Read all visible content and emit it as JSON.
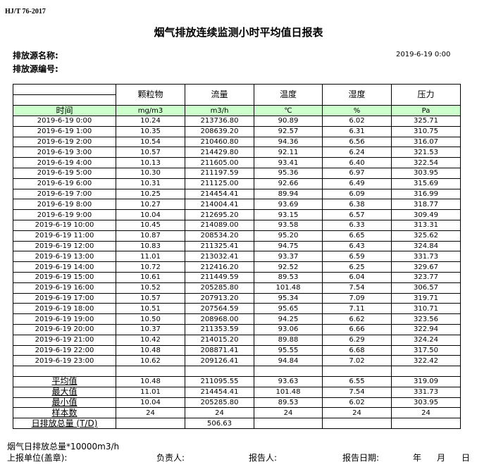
{
  "standard": "HJ/T  76-2017",
  "title": "烟气排放连续监测小时平均值日报表",
  "source_name_label": "排放源名称:",
  "source_no_label": "排放源编号:",
  "report_datetime": "2019-6-19 0:00",
  "columns": [
    {
      "name": "颗粒物",
      "unit": "mg/m3"
    },
    {
      "name": "流量",
      "unit": "m3/h"
    },
    {
      "name": "温度",
      "unit": "℃"
    },
    {
      "name": "湿度",
      "unit": "%"
    },
    {
      "name": "压力",
      "unit": "Pa"
    }
  ],
  "time_header": "时间",
  "rows": [
    [
      "2019-6-19 0:00",
      "10.24",
      "213736.80",
      "90.89",
      "6.02",
      "325.71"
    ],
    [
      "2019-6-19 1:00",
      "10.35",
      "208639.20",
      "92.57",
      "6.31",
      "310.75"
    ],
    [
      "2019-6-19 2:00",
      "10.54",
      "210460.80",
      "94.36",
      "6.56",
      "316.07"
    ],
    [
      "2019-6-19 3:00",
      "10.57",
      "214429.80",
      "92.11",
      "6.24",
      "321.53"
    ],
    [
      "2019-6-19 4:00",
      "10.13",
      "211605.00",
      "93.41",
      "6.40",
      "322.54"
    ],
    [
      "2019-6-19 5:00",
      "10.30",
      "211197.59",
      "95.36",
      "6.97",
      "303.95"
    ],
    [
      "2019-6-19 6:00",
      "10.31",
      "211125.00",
      "92.66",
      "6.49",
      "315.69"
    ],
    [
      "2019-6-19 7:00",
      "10.25",
      "214454.41",
      "89.94",
      "6.09",
      "316.99"
    ],
    [
      "2019-6-19 8:00",
      "10.27",
      "214004.41",
      "93.69",
      "6.38",
      "318.77"
    ],
    [
      "2019-6-19 9:00",
      "10.04",
      "212695.20",
      "93.15",
      "6.57",
      "309.49"
    ],
    [
      "2019-6-19 10:00",
      "10.45",
      "214089.00",
      "93.58",
      "6.33",
      "313.31"
    ],
    [
      "2019-6-19 11:00",
      "10.87",
      "208534.20",
      "95.20",
      "6.65",
      "325.62"
    ],
    [
      "2019-6-19 12:00",
      "10.83",
      "211325.41",
      "94.75",
      "6.43",
      "324.84"
    ],
    [
      "2019-6-19 13:00",
      "11.01",
      "213032.41",
      "93.37",
      "6.59",
      "331.73"
    ],
    [
      "2019-6-19 14:00",
      "10.72",
      "212416.20",
      "92.52",
      "6.25",
      "329.67"
    ],
    [
      "2019-6-19 15:00",
      "10.61",
      "211449.59",
      "89.53",
      "6.04",
      "323.77"
    ],
    [
      "2019-6-19 16:00",
      "10.52",
      "205285.80",
      "101.48",
      "7.54",
      "306.57"
    ],
    [
      "2019-6-19 17:00",
      "10.57",
      "207913.20",
      "95.34",
      "7.09",
      "319.71"
    ],
    [
      "2019-6-19 18:00",
      "10.51",
      "207564.59",
      "95.65",
      "7.11",
      "310.71"
    ],
    [
      "2019-6-19 19:00",
      "10.50",
      "208968.00",
      "94.25",
      "6.62",
      "323.56"
    ],
    [
      "2019-6-19 20:00",
      "10.37",
      "211353.59",
      "93.06",
      "6.66",
      "322.94"
    ],
    [
      "2019-6-19 21:00",
      "10.42",
      "214015.20",
      "89.88",
      "6.29",
      "324.24"
    ],
    [
      "2019-6-19 22:00",
      "10.48",
      "208871.41",
      "95.55",
      "6.68",
      "317.50"
    ],
    [
      "2019-6-19 23:00",
      "10.62",
      "209126.41",
      "94.84",
      "7.02",
      "322.42"
    ]
  ],
  "summary": [
    [
      "平均值",
      "10.48",
      "211095.55",
      "93.63",
      "6.55",
      "319.09"
    ],
    [
      "最大值",
      "11.01",
      "214454.41",
      "101.48",
      "7.54",
      "331.73"
    ],
    [
      "最小值",
      "10.04",
      "205285.80",
      "89.53",
      "6.02",
      "303.95"
    ],
    [
      "样本数",
      "24",
      "24",
      "24",
      "24",
      "24"
    ],
    [
      "日排放总量 (T/D)",
      "",
      "506.63",
      "",
      "",
      ""
    ]
  ],
  "footer": {
    "note": "烟气日排放总量*10000m3/h",
    "unit_label": "上报单位(盖章):",
    "responsible_label": "负责人:",
    "reporter_label": "报告人:",
    "report_date_label": "报告日期:",
    "year": "年",
    "month": "月",
    "day": "日"
  }
}
